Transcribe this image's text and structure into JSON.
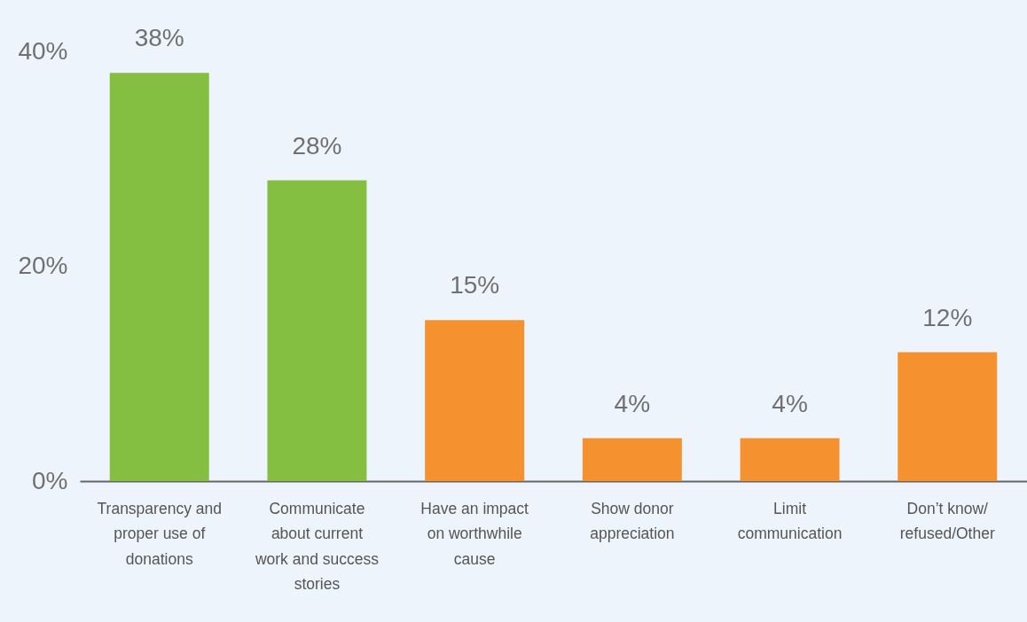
{
  "chart_data": {
    "type": "bar",
    "categories": [
      "Transparency and proper use of donations",
      "Communicate about current work and success stories",
      "Have an impact on worthwhile cause",
      "Show donor appreciation",
      "Limit communication",
      "Don’t know/refused/Other"
    ],
    "values": [
      38,
      28,
      15,
      4,
      4,
      12
    ],
    "colors": [
      "#84bf41",
      "#84bf41",
      "#f5922f",
      "#f5922f",
      "#f5922f",
      "#f5922f"
    ],
    "value_labels": [
      "38%",
      "28%",
      "15%",
      "4%",
      "4%",
      "12%"
    ],
    "ylim": [
      0,
      40
    ],
    "yticks": [
      {
        "value": 0,
        "label": "0%"
      },
      {
        "value": 20,
        "label": "20%"
      },
      {
        "value": 40,
        "label": "40%"
      }
    ],
    "grid": false
  }
}
